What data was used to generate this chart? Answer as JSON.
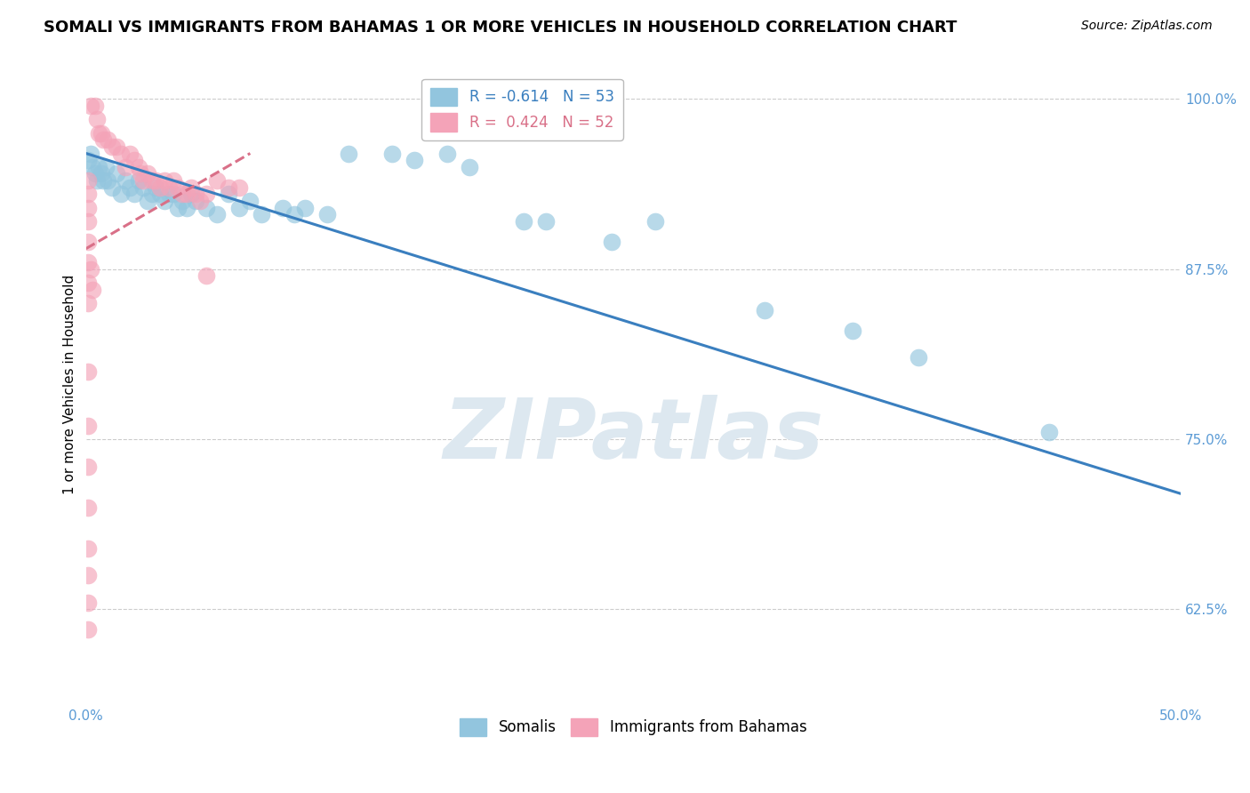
{
  "title": "SOMALI VS IMMIGRANTS FROM BAHAMAS 1 OR MORE VEHICLES IN HOUSEHOLD CORRELATION CHART",
  "source": "Source: ZipAtlas.com",
  "ylabel": "1 or more Vehicles in Household",
  "xlim": [
    0.0,
    0.5
  ],
  "ylim": [
    0.555,
    1.025
  ],
  "xticks": [
    0.0,
    0.125,
    0.25,
    0.375,
    0.5
  ],
  "xticklabels": [
    "0.0%",
    "",
    "",
    "",
    "50.0%"
  ],
  "yticks": [
    0.625,
    0.75,
    0.875,
    1.0
  ],
  "yticklabels": [
    "62.5%",
    "75.0%",
    "87.5%",
    "100.0%"
  ],
  "somali_color": "#92c5de",
  "bahamas_color": "#f4a3b8",
  "somali_line_color": "#3a7fbf",
  "bahamas_line_color": "#d97088",
  "watermark": "ZIPatlas",
  "watermark_color": "#dde8f0",
  "somali_points": [
    [
      0.001,
      0.955
    ],
    [
      0.002,
      0.96
    ],
    [
      0.003,
      0.95
    ],
    [
      0.004,
      0.945
    ],
    [
      0.005,
      0.94
    ],
    [
      0.006,
      0.95
    ],
    [
      0.007,
      0.945
    ],
    [
      0.008,
      0.94
    ],
    [
      0.009,
      0.95
    ],
    [
      0.01,
      0.94
    ],
    [
      0.012,
      0.935
    ],
    [
      0.014,
      0.945
    ],
    [
      0.016,
      0.93
    ],
    [
      0.018,
      0.94
    ],
    [
      0.02,
      0.935
    ],
    [
      0.022,
      0.93
    ],
    [
      0.024,
      0.94
    ],
    [
      0.026,
      0.935
    ],
    [
      0.028,
      0.925
    ],
    [
      0.03,
      0.93
    ],
    [
      0.032,
      0.935
    ],
    [
      0.034,
      0.93
    ],
    [
      0.036,
      0.925
    ],
    [
      0.038,
      0.93
    ],
    [
      0.04,
      0.93
    ],
    [
      0.042,
      0.92
    ],
    [
      0.044,
      0.925
    ],
    [
      0.046,
      0.92
    ],
    [
      0.048,
      0.93
    ],
    [
      0.05,
      0.925
    ],
    [
      0.055,
      0.92
    ],
    [
      0.06,
      0.915
    ],
    [
      0.065,
      0.93
    ],
    [
      0.07,
      0.92
    ],
    [
      0.075,
      0.925
    ],
    [
      0.08,
      0.915
    ],
    [
      0.09,
      0.92
    ],
    [
      0.095,
      0.915
    ],
    [
      0.1,
      0.92
    ],
    [
      0.11,
      0.915
    ],
    [
      0.12,
      0.96
    ],
    [
      0.14,
      0.96
    ],
    [
      0.15,
      0.955
    ],
    [
      0.165,
      0.96
    ],
    [
      0.175,
      0.95
    ],
    [
      0.2,
      0.91
    ],
    [
      0.21,
      0.91
    ],
    [
      0.24,
      0.895
    ],
    [
      0.26,
      0.91
    ],
    [
      0.31,
      0.845
    ],
    [
      0.35,
      0.83
    ],
    [
      0.38,
      0.81
    ],
    [
      0.44,
      0.755
    ]
  ],
  "bahamas_points": [
    [
      0.002,
      0.995
    ],
    [
      0.004,
      0.995
    ],
    [
      0.005,
      0.985
    ],
    [
      0.006,
      0.975
    ],
    [
      0.007,
      0.975
    ],
    [
      0.008,
      0.97
    ],
    [
      0.01,
      0.97
    ],
    [
      0.012,
      0.965
    ],
    [
      0.014,
      0.965
    ],
    [
      0.016,
      0.96
    ],
    [
      0.018,
      0.95
    ],
    [
      0.02,
      0.96
    ],
    [
      0.022,
      0.955
    ],
    [
      0.024,
      0.95
    ],
    [
      0.025,
      0.945
    ],
    [
      0.026,
      0.94
    ],
    [
      0.028,
      0.945
    ],
    [
      0.03,
      0.94
    ],
    [
      0.032,
      0.94
    ],
    [
      0.034,
      0.935
    ],
    [
      0.036,
      0.94
    ],
    [
      0.038,
      0.935
    ],
    [
      0.04,
      0.94
    ],
    [
      0.042,
      0.935
    ],
    [
      0.044,
      0.93
    ],
    [
      0.046,
      0.93
    ],
    [
      0.048,
      0.935
    ],
    [
      0.05,
      0.93
    ],
    [
      0.052,
      0.925
    ],
    [
      0.055,
      0.93
    ],
    [
      0.06,
      0.94
    ],
    [
      0.065,
      0.935
    ],
    [
      0.07,
      0.935
    ],
    [
      0.001,
      0.94
    ],
    [
      0.001,
      0.93
    ],
    [
      0.001,
      0.92
    ],
    [
      0.001,
      0.91
    ],
    [
      0.001,
      0.895
    ],
    [
      0.001,
      0.88
    ],
    [
      0.001,
      0.865
    ],
    [
      0.001,
      0.85
    ],
    [
      0.002,
      0.875
    ],
    [
      0.003,
      0.86
    ],
    [
      0.055,
      0.87
    ],
    [
      0.001,
      0.8
    ],
    [
      0.001,
      0.76
    ],
    [
      0.001,
      0.73
    ],
    [
      0.001,
      0.7
    ],
    [
      0.001,
      0.67
    ],
    [
      0.001,
      0.65
    ],
    [
      0.001,
      0.63
    ],
    [
      0.001,
      0.61
    ]
  ],
  "somali_trend_x": [
    0.0,
    0.5
  ],
  "somali_trend_y": [
    0.96,
    0.71
  ],
  "bahamas_trend_x": [
    0.0,
    0.075
  ],
  "bahamas_trend_y": [
    0.89,
    0.96
  ],
  "background_color": "#ffffff",
  "grid_color": "#cccccc",
  "tick_color": "#5b9bd5",
  "title_fontsize": 13,
  "axis_label_fontsize": 11,
  "tick_fontsize": 11,
  "legend_fontsize": 12,
  "legend1_label1": "R = -0.614   N = 53",
  "legend1_label2": "R =  0.424   N = 52",
  "legend2_label1": "Somalis",
  "legend2_label2": "Immigrants from Bahamas"
}
